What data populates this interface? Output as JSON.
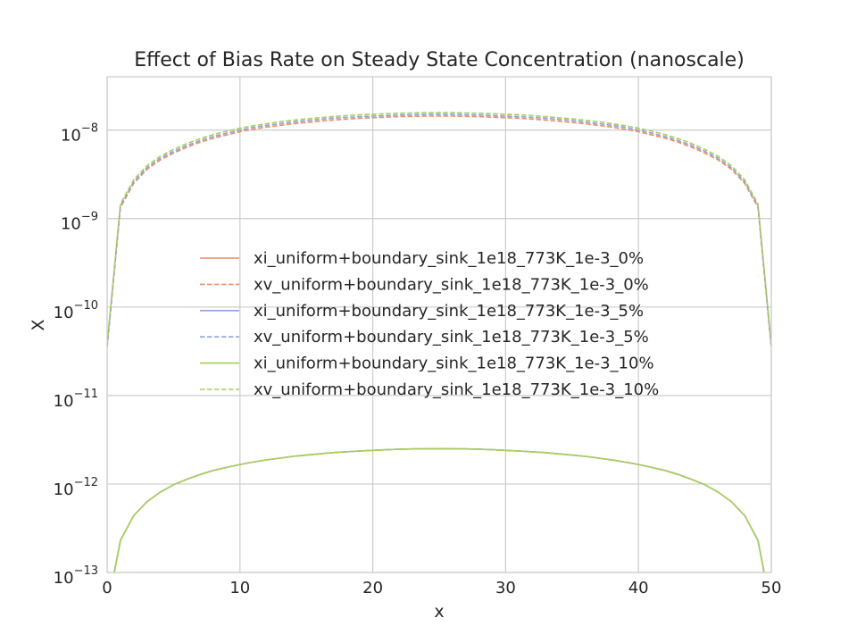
{
  "chart_data": {
    "type": "line",
    "title": "Effect of Bias Rate on Steady State Concentration (nanoscale)",
    "xlabel": "x",
    "ylabel": "X",
    "xlim": [
      0,
      50
    ],
    "ylim": [
      1e-13,
      4e-08
    ],
    "yscale": "log",
    "grid": true,
    "legend_position": "center",
    "x_ticks": [
      "0",
      "10",
      "20",
      "30",
      "40",
      "50"
    ],
    "y_ticks": [
      {
        "base": "10",
        "exp": "−8",
        "value": 1e-08
      },
      {
        "base": "10",
        "exp": "−9",
        "value": 1e-09
      },
      {
        "base": "10",
        "exp": "−10",
        "value": 1e-10
      },
      {
        "base": "10",
        "exp": "−11",
        "value": 1e-11
      },
      {
        "base": "10",
        "exp": "−12",
        "value": 1e-12
      },
      {
        "base": "10",
        "exp": "−13",
        "value": 1e-13
      }
    ],
    "x": [
      0,
      1,
      2,
      3,
      4,
      5,
      6,
      7,
      8,
      9,
      10,
      11,
      12,
      13,
      14,
      15,
      16,
      17,
      18,
      19,
      20,
      21,
      22,
      23,
      24,
      25,
      26,
      27,
      28,
      29,
      30,
      31,
      32,
      33,
      34,
      35,
      36,
      37,
      38,
      39,
      40,
      41,
      42,
      43,
      44,
      45,
      46,
      47,
      48,
      49,
      50
    ],
    "series": [
      {
        "name": "xi_uniform+boundary_sink_1e18_773K_1e-3_0%",
        "color": "#f08a6a",
        "dash": "solid",
        "values": [
          3.8e-14,
          2.3e-13,
          4.4e-13,
          6.3e-13,
          8.1e-13,
          9.8e-13,
          1.13e-12,
          1.28e-12,
          1.42e-12,
          1.54e-12,
          1.66e-12,
          1.77e-12,
          1.87e-12,
          1.96e-12,
          2.05e-12,
          2.12e-12,
          2.19e-12,
          2.26e-12,
          2.31e-12,
          2.36e-12,
          2.4e-12,
          2.44e-12,
          2.47e-12,
          2.49e-12,
          2.5e-12,
          2.51e-12,
          2.5e-12,
          2.49e-12,
          2.47e-12,
          2.44e-12,
          2.4e-12,
          2.36e-12,
          2.31e-12,
          2.26e-12,
          2.19e-12,
          2.12e-12,
          2.05e-12,
          1.96e-12,
          1.87e-12,
          1.77e-12,
          1.66e-12,
          1.54e-12,
          1.42e-12,
          1.28e-12,
          1.13e-12,
          9.8e-13,
          8.1e-13,
          6.3e-13,
          4.4e-13,
          2.3e-13,
          3.8e-14
        ]
      },
      {
        "name": "xv_uniform+boundary_sink_1e18_773K_1e-3_0%",
        "color": "#f08a6a",
        "dash": "dashed",
        "values": [
          3.5e-11,
          1.33e-09,
          2.5e-09,
          3.6e-09,
          4.6e-09,
          5.5e-09,
          6.4e-09,
          7.3e-09,
          8.1e-09,
          8.8e-09,
          9.6e-09,
          1.02e-08,
          1.08e-08,
          1.13e-08,
          1.18e-08,
          1.22e-08,
          1.26e-08,
          1.3e-08,
          1.33e-08,
          1.36e-08,
          1.38e-08,
          1.4e-08,
          1.42e-08,
          1.43e-08,
          1.44e-08,
          1.44e-08,
          1.44e-08,
          1.43e-08,
          1.42e-08,
          1.4e-08,
          1.38e-08,
          1.36e-08,
          1.33e-08,
          1.3e-08,
          1.26e-08,
          1.22e-08,
          1.18e-08,
          1.13e-08,
          1.08e-08,
          1.02e-08,
          9.6e-09,
          8.8e-09,
          8.1e-09,
          7.3e-09,
          6.4e-09,
          5.5e-09,
          4.6e-09,
          3.6e-09,
          2.5e-09,
          1.33e-09,
          3.5e-11
        ]
      },
      {
        "name": "xi_uniform+boundary_sink_1e18_773K_1e-3_5%",
        "color": "#8fa4d6",
        "dash": "solid",
        "values": [
          3.8e-14,
          2.3e-13,
          4.4e-13,
          6.3e-13,
          8.1e-13,
          9.8e-13,
          1.13e-12,
          1.28e-12,
          1.42e-12,
          1.54e-12,
          1.66e-12,
          1.77e-12,
          1.87e-12,
          1.96e-12,
          2.05e-12,
          2.12e-12,
          2.19e-12,
          2.26e-12,
          2.31e-12,
          2.36e-12,
          2.4e-12,
          2.44e-12,
          2.47e-12,
          2.49e-12,
          2.5e-12,
          2.51e-12,
          2.5e-12,
          2.49e-12,
          2.47e-12,
          2.44e-12,
          2.4e-12,
          2.36e-12,
          2.31e-12,
          2.26e-12,
          2.19e-12,
          2.12e-12,
          2.05e-12,
          1.96e-12,
          1.87e-12,
          1.77e-12,
          1.66e-12,
          1.54e-12,
          1.42e-12,
          1.28e-12,
          1.13e-12,
          9.8e-13,
          8.1e-13,
          6.3e-13,
          4.4e-13,
          2.3e-13,
          3.8e-14
        ]
      },
      {
        "name": "xv_uniform+boundary_sink_1e18_773K_1e-3_5%",
        "color": "#8fa4d6",
        "dash": "dashed",
        "values": [
          3.6e-11,
          1.4e-09,
          2.6e-09,
          3.75e-09,
          4.8e-09,
          5.75e-09,
          6.7e-09,
          7.6e-09,
          8.45e-09,
          9.2e-09,
          1e-08,
          1.07e-08,
          1.13e-08,
          1.18e-08,
          1.23e-08,
          1.28e-08,
          1.32e-08,
          1.36e-08,
          1.39e-08,
          1.42e-08,
          1.44e-08,
          1.46e-08,
          1.48e-08,
          1.49e-08,
          1.5e-08,
          1.5e-08,
          1.5e-08,
          1.49e-08,
          1.48e-08,
          1.46e-08,
          1.44e-08,
          1.42e-08,
          1.39e-08,
          1.36e-08,
          1.32e-08,
          1.28e-08,
          1.23e-08,
          1.18e-08,
          1.13e-08,
          1.07e-08,
          1e-08,
          9.2e-09,
          8.45e-09,
          7.6e-09,
          6.7e-09,
          5.75e-09,
          4.8e-09,
          3.75e-09,
          2.6e-09,
          1.4e-09,
          3.6e-11
        ]
      },
      {
        "name": "xi_uniform+boundary_sink_1e18_773K_1e-3_10%",
        "color": "#a6d05a",
        "dash": "solid",
        "values": [
          3.8e-14,
          2.3e-13,
          4.4e-13,
          6.3e-13,
          8.1e-13,
          9.8e-13,
          1.13e-12,
          1.28e-12,
          1.42e-12,
          1.54e-12,
          1.66e-12,
          1.77e-12,
          1.87e-12,
          1.96e-12,
          2.05e-12,
          2.12e-12,
          2.19e-12,
          2.26e-12,
          2.31e-12,
          2.36e-12,
          2.4e-12,
          2.44e-12,
          2.47e-12,
          2.49e-12,
          2.5e-12,
          2.51e-12,
          2.5e-12,
          2.49e-12,
          2.47e-12,
          2.44e-12,
          2.4e-12,
          2.36e-12,
          2.31e-12,
          2.26e-12,
          2.19e-12,
          2.12e-12,
          2.05e-12,
          1.96e-12,
          1.87e-12,
          1.77e-12,
          1.66e-12,
          1.54e-12,
          1.42e-12,
          1.28e-12,
          1.13e-12,
          9.8e-13,
          8.1e-13,
          6.3e-13,
          4.4e-13,
          2.3e-13,
          3.8e-14
        ]
      },
      {
        "name": "xv_uniform+boundary_sink_1e18_773K_1e-3_10%",
        "color": "#a6d05a",
        "dash": "dashed",
        "values": [
          3.8e-11,
          1.46e-09,
          2.75e-09,
          3.95e-09,
          5.05e-09,
          6.05e-09,
          7.05e-09,
          8e-09,
          8.9e-09,
          9.7e-09,
          1.05e-08,
          1.12e-08,
          1.18e-08,
          1.24e-08,
          1.29e-08,
          1.34e-08,
          1.38e-08,
          1.42e-08,
          1.46e-08,
          1.49e-08,
          1.51e-08,
          1.53e-08,
          1.55e-08,
          1.56e-08,
          1.57e-08,
          1.57e-08,
          1.57e-08,
          1.56e-08,
          1.55e-08,
          1.53e-08,
          1.51e-08,
          1.49e-08,
          1.46e-08,
          1.42e-08,
          1.38e-08,
          1.34e-08,
          1.29e-08,
          1.24e-08,
          1.18e-08,
          1.12e-08,
          1.05e-08,
          9.7e-09,
          8.9e-09,
          8e-09,
          7.05e-09,
          6.05e-09,
          5.05e-09,
          3.95e-09,
          2.75e-09,
          1.46e-09,
          3.8e-11
        ]
      }
    ]
  }
}
